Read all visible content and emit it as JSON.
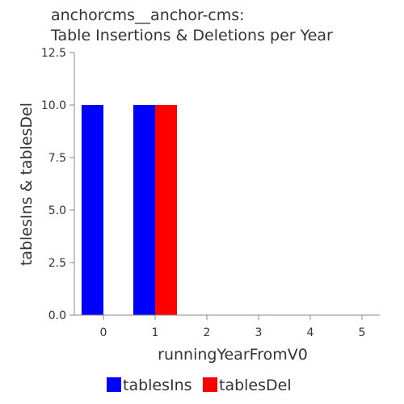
{
  "chart_data": {
    "type": "bar",
    "title_lines": [
      "anchorcms__anchor-cms:",
      "Table Insertions & Deletions per Year"
    ],
    "xlabel": "runningYearFromV0",
    "ylabel": "tablesIns & tablesDel",
    "categories": [
      "0",
      "1",
      "2",
      "3",
      "4",
      "5"
    ],
    "series": [
      {
        "name": "tablesIns",
        "color": "#0000ff",
        "values": [
          10,
          10,
          0,
          0,
          0,
          0
        ]
      },
      {
        "name": "tablesDel",
        "color": "#ff0000",
        "values": [
          0,
          10,
          0,
          0,
          0,
          0
        ]
      }
    ],
    "ylim": [
      0,
      12.5
    ],
    "yticks": [
      0,
      2.5,
      5,
      7.5,
      10,
      12.5
    ],
    "ytick_labels": [
      "0.0",
      "2.5",
      "5.0",
      "7.5",
      "10.0",
      "12.5"
    ],
    "grid": false,
    "legend_position": "bottom"
  }
}
